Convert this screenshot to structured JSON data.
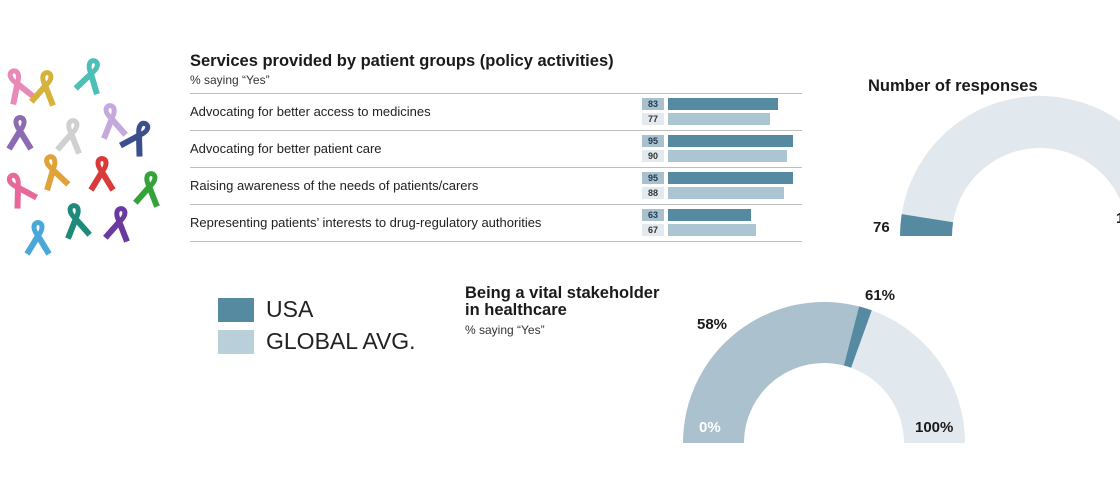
{
  "bars_chart": {
    "title": "Services provided by patient groups (policy activities)",
    "subtitle": "% saying “Yes”"
  },
  "legend": [
    {
      "label": "USA",
      "color": "#568aa0"
    },
    {
      "label": "GLOBAL AVG.",
      "color": "#b9cfd9"
    }
  ],
  "responses": {
    "title": "Number of responses",
    "value_label": "76",
    "right_label": "1"
  },
  "stakeholder": {
    "title_line1": "Being a vital stakeholder",
    "title_line2": "in healthcare",
    "subtitle": "% saying “Yes”",
    "label_global": "58%",
    "label_usa": "61%",
    "label_min": "0%",
    "label_max": "100%"
  },
  "chart_data": [
    {
      "type": "bar",
      "title": "Services provided by patient groups (policy activities)",
      "subtitle": "% saying “Yes”",
      "categories": [
        "Advocating for better access to medicines",
        "Advocating for better patient care",
        "Raising awareness of the needs of patients/carers",
        "Representing patients’ interests to drug-regulatory authorities"
      ],
      "series": [
        {
          "name": "USA",
          "values": [
            83,
            95,
            95,
            63
          ],
          "color": "#568aa0"
        },
        {
          "name": "GLOBAL AVG.",
          "values": [
            77,
            90,
            88,
            67
          ],
          "color": "#abc6d2"
        }
      ],
      "xlim": [
        0,
        100
      ]
    },
    {
      "type": "pie",
      "title": "Number of responses",
      "value": 76,
      "shape": "semicircle gauge (partially visible)"
    },
    {
      "type": "pie",
      "title": "Being a vital stakeholder in healthcare",
      "subtitle": "% saying “Yes”",
      "shape": "semicircle gauge",
      "range": [
        0,
        100
      ],
      "series": [
        {
          "name": "GLOBAL AVG.",
          "value": 58
        },
        {
          "name": "USA",
          "value": 61
        }
      ]
    }
  ]
}
